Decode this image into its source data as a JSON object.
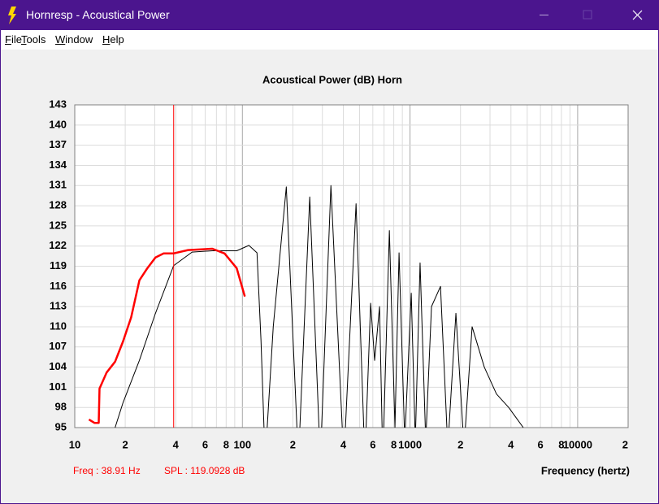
{
  "window": {
    "title": "Hornresp - Acoustical Power"
  },
  "menu": [
    "File",
    "Tools",
    "Window",
    "Help"
  ],
  "chart_data": {
    "type": "line",
    "title": "Acoustical Power (dB)   Horn",
    "x_label": "Frequency (hertz)",
    "log_x": true,
    "grid": true,
    "xlim": [
      10,
      20000
    ],
    "ylim": [
      95,
      143
    ],
    "yticks": [
      95,
      98,
      101,
      104,
      107,
      110,
      113,
      116,
      119,
      122,
      125,
      128,
      131,
      134,
      137,
      140,
      143
    ],
    "xticks": [
      10,
      {
        "value": 20,
        "label": "2"
      },
      {
        "value": 40,
        "label": "4"
      },
      {
        "value": 60,
        "label": "6"
      },
      {
        "value": 80,
        "label": "8"
      },
      100,
      {
        "value": 200,
        "label": "2"
      },
      {
        "value": 400,
        "label": "4"
      },
      {
        "value": 600,
        "label": "6"
      },
      {
        "value": 800,
        "label": "8"
      },
      1000,
      {
        "value": 2000,
        "label": "2"
      },
      {
        "value": 4000,
        "label": "4"
      },
      {
        "value": 6000,
        "label": "6"
      },
      {
        "value": 8000,
        "label": "8"
      },
      10000,
      {
        "value": 20000,
        "label": "2"
      }
    ],
    "xminor_ticks": [
      30,
      50,
      70,
      90,
      300,
      500,
      700,
      900,
      3000,
      5000,
      7000,
      9000
    ],
    "series": [
      {
        "color": "#000000",
        "x": [
          17.4,
          19.4,
          24.3,
          30.3,
          38.91,
          50.1,
          66.2,
          92.5,
          109.4,
          122.2,
          129.1,
          136.7,
          152.8,
          182.8,
          215.9,
          252.2,
          291.7,
          337.3,
          402.8,
          476.5,
          538,
          582,
          615,
          658,
          688,
          753,
          813,
          860,
          930,
          1017,
          1075,
          1148,
          1241,
          1343,
          1520,
          1680,
          1878,
          2100,
          2346,
          2773,
          3279,
          3876,
          4740
        ],
        "values": [
          95,
          98.7,
          105,
          112,
          119.0928,
          121.1,
          121.3,
          121.3,
          122.1,
          121,
          108,
          90,
          110,
          130.8,
          90,
          129.3,
          90,
          131,
          90,
          128.3,
          90,
          113.5,
          105,
          113,
          90,
          124.3,
          95,
          121,
          93,
          115,
          93,
          119.5,
          93,
          113,
          116,
          92,
          112,
          92,
          110,
          104,
          100,
          98,
          95
        ]
      },
      {
        "color": "#ff0000",
        "x": [
          12.15,
          13.1,
          13.9,
          14.05,
          15.5,
          17.4,
          19.4,
          21.7,
          24.3,
          27.1,
          30.3,
          33.9,
          38.7,
          47.4,
          66.2,
          78.3,
          92.5,
          103.4
        ],
        "values": [
          96.2,
          95.7,
          95.7,
          100.8,
          103.2,
          104.8,
          107.8,
          111.4,
          116.9,
          118.7,
          120.3,
          120.9,
          120.9,
          121.4,
          121.6,
          120.9,
          118.7,
          114.5
        ]
      }
    ],
    "cursor": {
      "freq": 38.91,
      "freq_label": "Freq : 38.91 Hz",
      "spl": 119.0928,
      "spl_label": "SPL : 119.0928 dB",
      "color": "#ff0000"
    }
  }
}
